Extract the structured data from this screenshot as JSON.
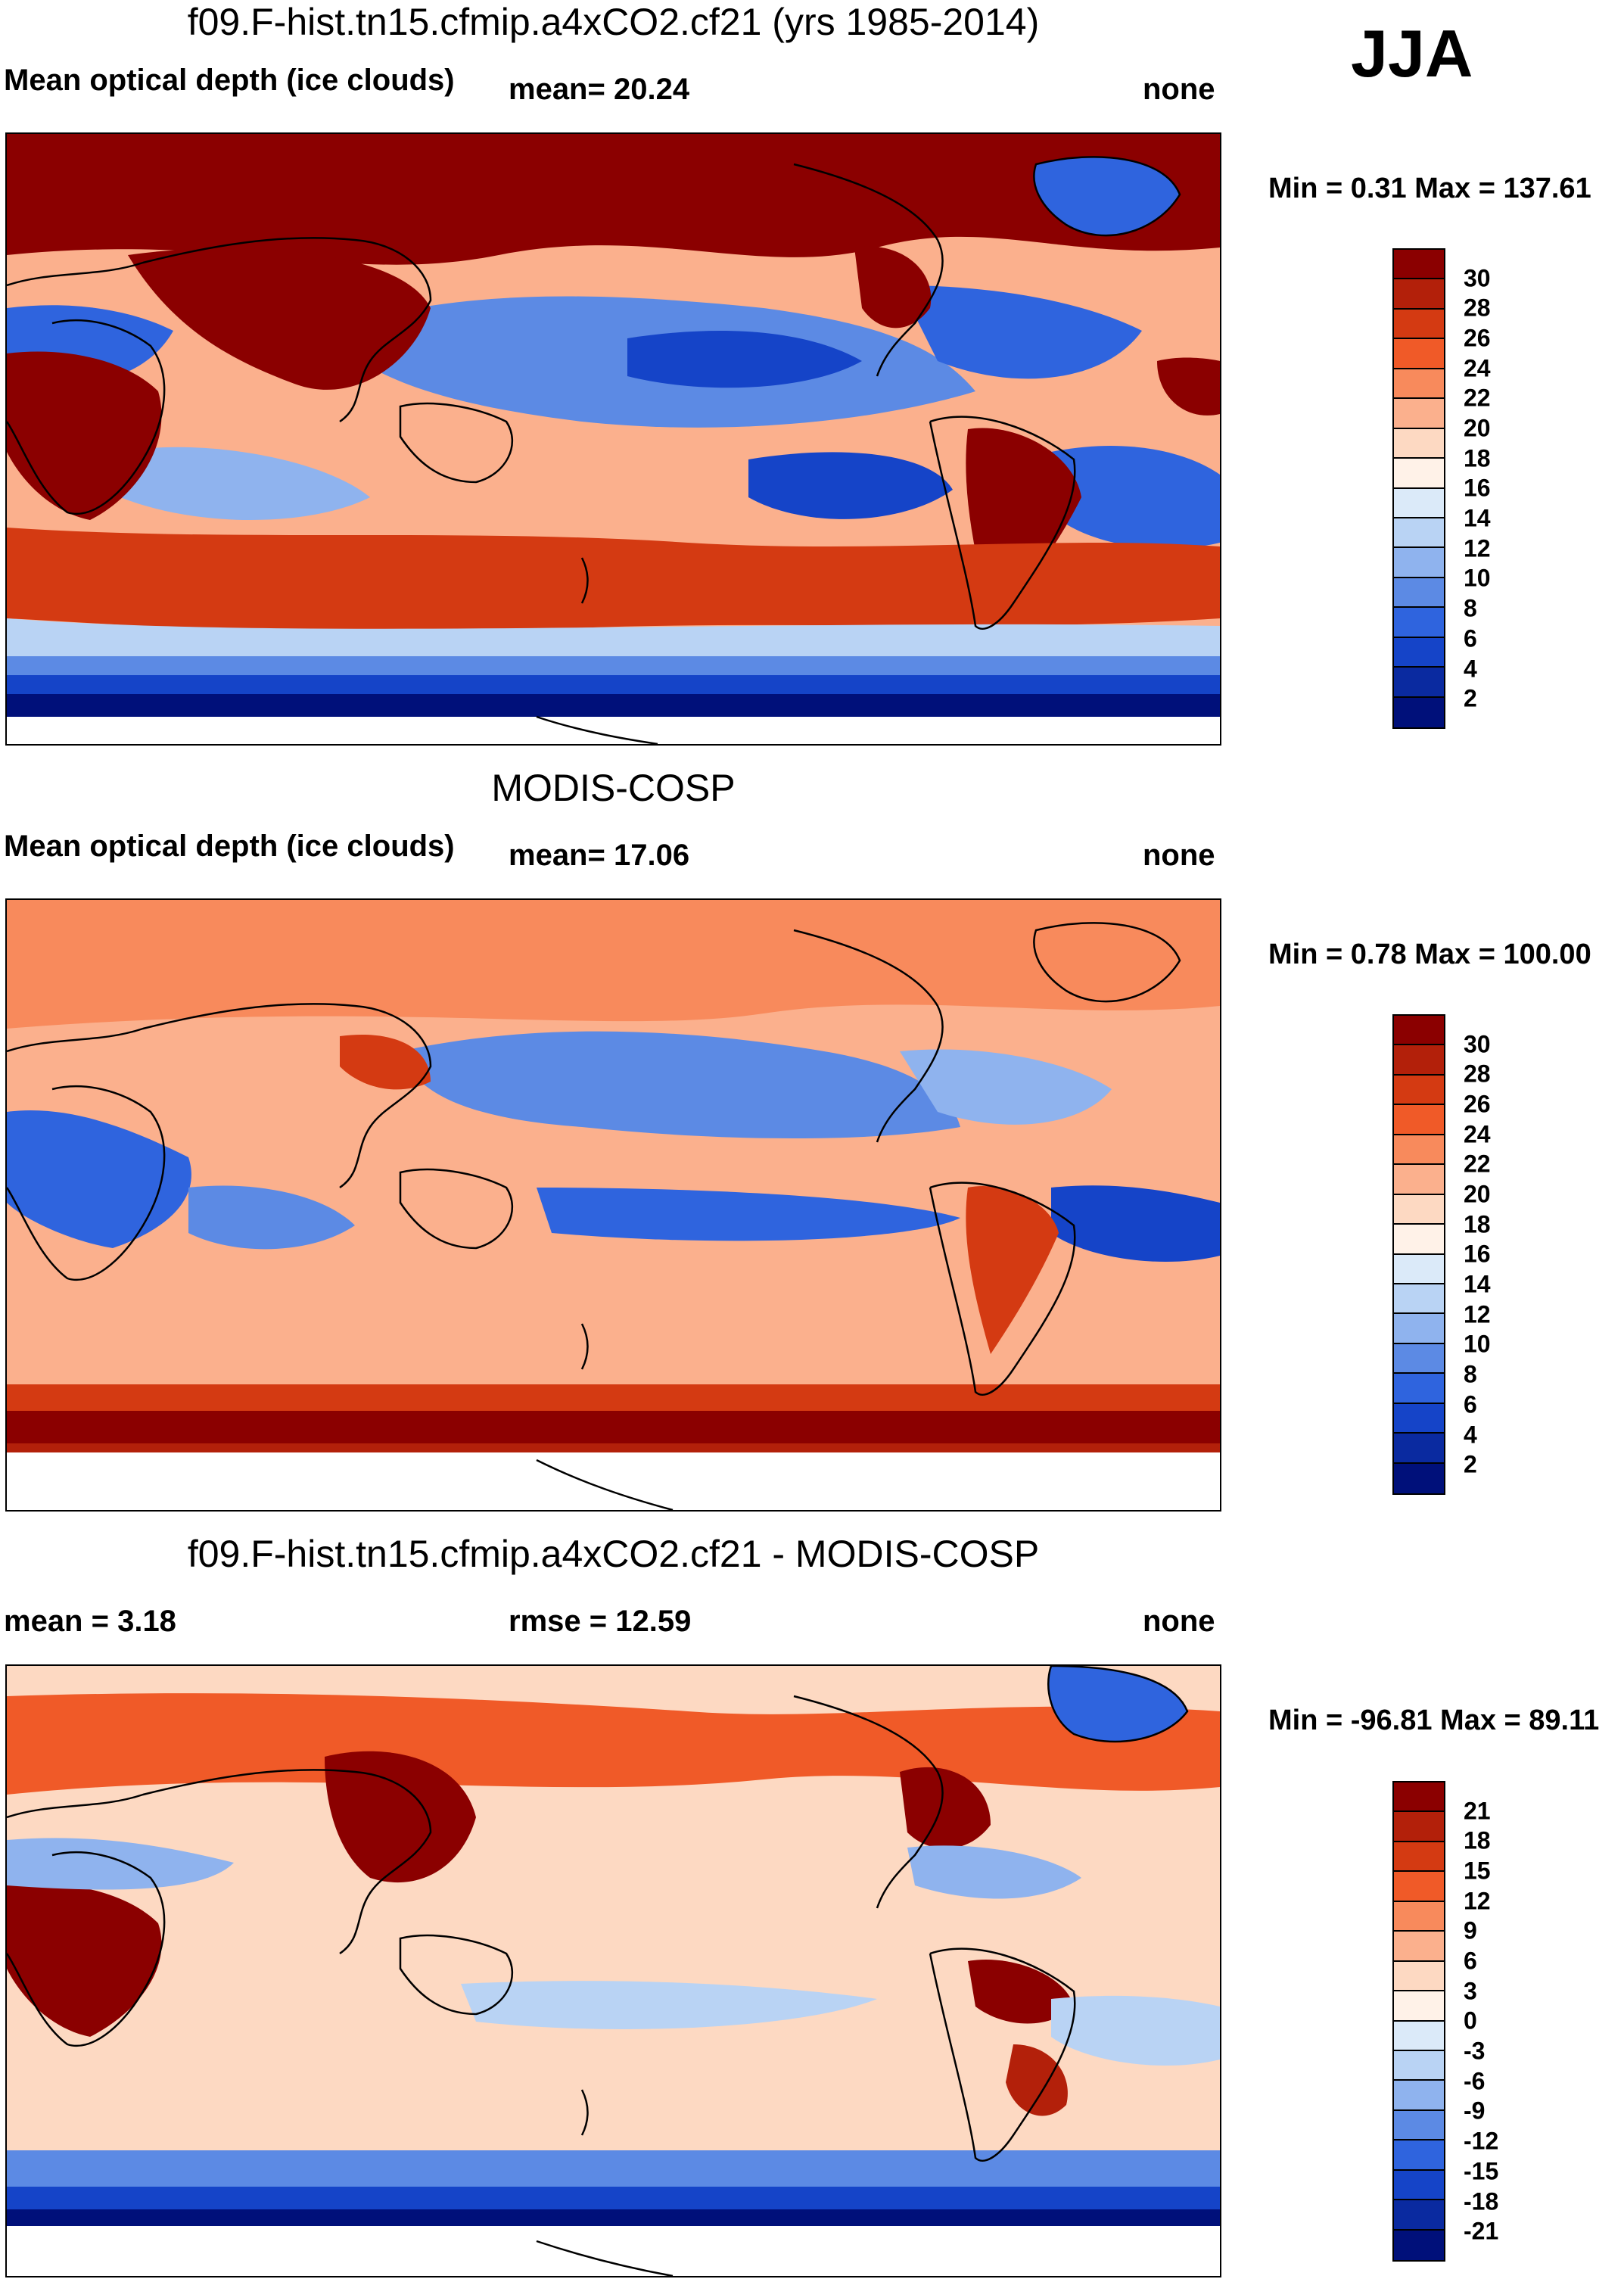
{
  "season": "JJA",
  "panels": [
    {
      "title": "f09.F-hist.tn15.cfmip.a4xCO2.cf21 (yrs 1985-2014)",
      "left_label": "Mean optical depth (ice clouds)",
      "center_label": "mean=  20.24",
      "right_label": "none",
      "minmax": "Min =   0.31 Max = 137.61",
      "colorbar": {
        "labels": [
          "30",
          "28",
          "26",
          "24",
          "22",
          "20",
          "18",
          "16",
          "14",
          "12",
          "10",
          "8",
          "6",
          "4",
          "2"
        ],
        "colors": [
          "#8b0000",
          "#b3200a",
          "#d43a12",
          "#f05a28",
          "#f88a5c",
          "#fbb08d",
          "#fdd9c2",
          "#fff2e8",
          "#dbeaf9",
          "#b9d3f4",
          "#8fb3ee",
          "#5c8ae4",
          "#2f64de",
          "#1544c8",
          "#0a2aa0",
          "#00107a"
        ]
      }
    },
    {
      "title": "MODIS-COSP",
      "left_label": "Mean optical depth (ice clouds)",
      "center_label": "mean=  17.06",
      "right_label": "none",
      "minmax": "Min =   0.78 Max = 100.00",
      "colorbar": {
        "labels": [
          "30",
          "28",
          "26",
          "24",
          "22",
          "20",
          "18",
          "16",
          "14",
          "12",
          "10",
          "8",
          "6",
          "4",
          "2"
        ],
        "colors": [
          "#8b0000",
          "#b3200a",
          "#d43a12",
          "#f05a28",
          "#f88a5c",
          "#fbb08d",
          "#fdd9c2",
          "#fff2e8",
          "#dbeaf9",
          "#b9d3f4",
          "#8fb3ee",
          "#5c8ae4",
          "#2f64de",
          "#1544c8",
          "#0a2aa0",
          "#00107a"
        ]
      }
    },
    {
      "title": "f09.F-hist.tn15.cfmip.a4xCO2.cf21 - MODIS-COSP",
      "left_label": "mean =   3.18",
      "center_label": "rmse =  12.59",
      "right_label": "none",
      "minmax": "Min = -96.81 Max =  89.11",
      "colorbar": {
        "labels": [
          "21",
          "18",
          "15",
          "12",
          "9",
          "6",
          "3",
          "0",
          "-3",
          "-6",
          "-9",
          "-12",
          "-15",
          "-18",
          "-21"
        ],
        "colors": [
          "#8b0000",
          "#b3200a",
          "#d43a12",
          "#f05a28",
          "#f88a5c",
          "#fbb08d",
          "#fdd9c2",
          "#fff2e8",
          "#dbeaf9",
          "#b9d3f4",
          "#8fb3ee",
          "#5c8ae4",
          "#2f64de",
          "#1544c8",
          "#0a2aa0",
          "#00107a"
        ]
      }
    }
  ]
}
